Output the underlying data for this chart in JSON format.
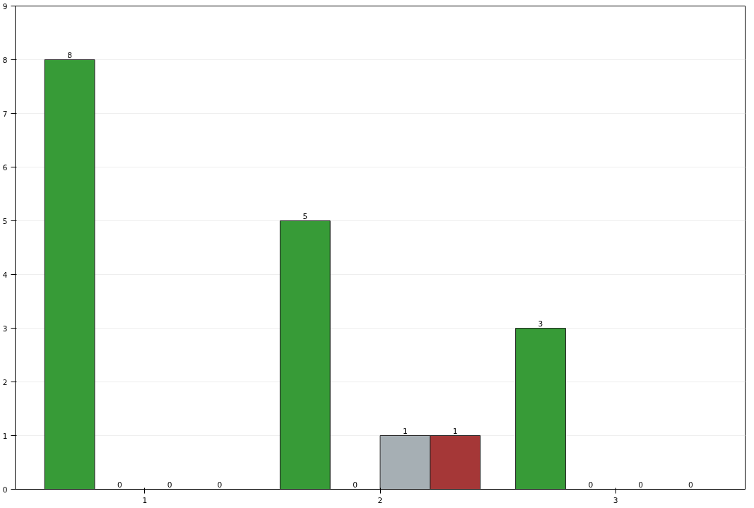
{
  "chart_data": {
    "type": "bar",
    "categories": [
      "1",
      "2",
      "3"
    ],
    "series": [
      {
        "color": "#339933",
        "values": [
          8,
          5,
          3
        ]
      },
      {
        "values": [
          0,
          0,
          0
        ]
      },
      {
        "color": "#a4adb2",
        "values": [
          0,
          1,
          0
        ]
      },
      {
        "color": "#a33333",
        "values": [
          0,
          1,
          0
        ]
      }
    ],
    "ylim": [
      0,
      9
    ],
    "yticks": [
      0,
      1,
      2,
      3,
      4,
      5,
      6,
      7,
      8,
      9
    ],
    "grid": "y",
    "data_labels": true
  }
}
